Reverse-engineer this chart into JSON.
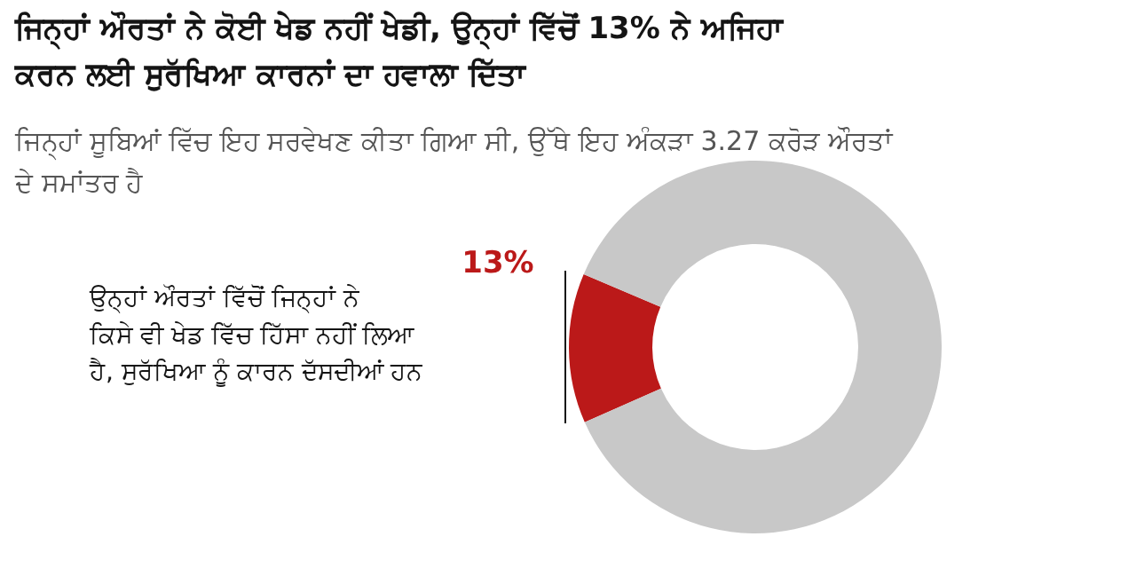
{
  "chart_data": {
    "type": "donut",
    "title": "ਜਿਨ੍ਹਾਂ ਔਰਤਾਂ ਨੇ ਕੋਈ ਖੇਡ ਨਹੀਂ ਖੇਡੀ, ਉਨ੍ਹਾਂ ਵਿੱਚੋਂ 13% ਨੇ ਅਜਿਹਾ ਕਰਨ ਲਈ ਸੁਰੱਖਿਆ ਕਾਰਨਾਂ ਦਾ ਹਵਾਲਾ ਦਿੱਤਾ",
    "subtitle": "ਜਿਨ੍ਹਾਂ ਸੂਬਿਆਂ ਵਿੱਚ ਇਹ ਸਰਵੇਖਣ ਕੀਤਾ ਗਿਆ ਸੀ, ਉੱਥੇ ਇਹ ਅੰਕੜਾ 3.27 ਕਰੋੜ ਔਰਤਾਂ ਦੇ ਸਮਾਂਤਰ ਹੈ",
    "annotations": [
      "ਉਨ੍ਹਾਂ ਔਰਤਾਂ ਵਿੱਚੋਂ ਜਿਨ੍ਹਾਂ ਨੇ ਕਿਸੇ ਵੀ ਖੇਡ ਵਿੱਚ ਹਿੱਸਾ ਨਹੀਂ ਲਿਆ ਹੈ, ਸੁਰੱਖਿਆ ਨੂੰ ਕਾਰਨ ਦੱਸਦੀਆਂ ਹਨ"
    ],
    "categories": [
      null,
      null
    ],
    "values": [
      13,
      87
    ],
    "colors": [
      "#bb1919",
      "#c8c8c8"
    ],
    "value_labels": [
      "13%",
      null
    ]
  }
}
